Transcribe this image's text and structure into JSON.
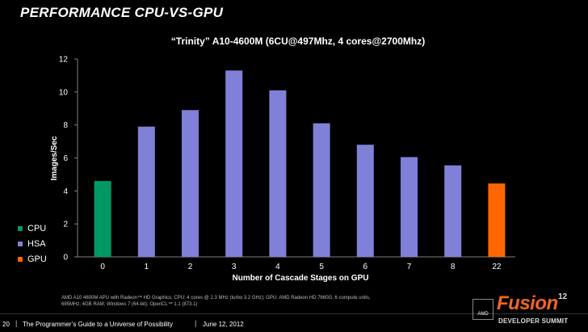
{
  "slide": {
    "title": "PERFORMANCE CPU-VS-GPU",
    "footnote": "AMD A10 4600M APU with Radeon™ HD Graphics; CPU: 4 cores @ 2.3 MHz (turbo 3.2 GHz); GPU: AMD Radeon HD 7660G, 6 compute units, 685MHz; 4GB RAM; Windows 7 (64-bit); OpenCL™ 1.1 (873.1)",
    "slide_number": "20",
    "separator": "|",
    "tagline": "The Programmer’s Guide to a Universe of Possibility",
    "date": "June 12, 2012",
    "logo": {
      "mark": "AMD",
      "word": "Fusion",
      "version": "12",
      "subtitle": "DEVELOPER SUMMIT"
    }
  },
  "chart_data": {
    "type": "bar",
    "title": "“Trinity” A10-4600M (6CU@497Mhz, 4 cores@2700Mhz)",
    "xlabel": "Number of Cascade Stages on GPU",
    "ylabel": "Images/Sec",
    "categories": [
      "0",
      "1",
      "2",
      "3",
      "4",
      "5",
      "6",
      "7",
      "8",
      "22"
    ],
    "values": [
      4.6,
      7.9,
      8.9,
      11.3,
      10.1,
      8.1,
      6.8,
      6.05,
      5.55,
      4.45
    ],
    "bar_series": [
      "CPU",
      "HSA",
      "HSA",
      "HSA",
      "HSA",
      "HSA",
      "HSA",
      "HSA",
      "HSA",
      "GPU"
    ],
    "ylim": [
      0,
      12
    ],
    "yticks": [
      0,
      2,
      4,
      6,
      8,
      10,
      12
    ],
    "grid": false,
    "legend": {
      "position": "left",
      "entries": [
        {
          "name": "CPU",
          "color": "#009966"
        },
        {
          "name": "HSA",
          "color": "#8080d8"
        },
        {
          "name": "GPU",
          "color": "#ff6600"
        }
      ]
    }
  },
  "colors": {
    "background": "#000000",
    "axis": "#808080",
    "text": "#ffffff",
    "brand_orange": "#f26522"
  }
}
